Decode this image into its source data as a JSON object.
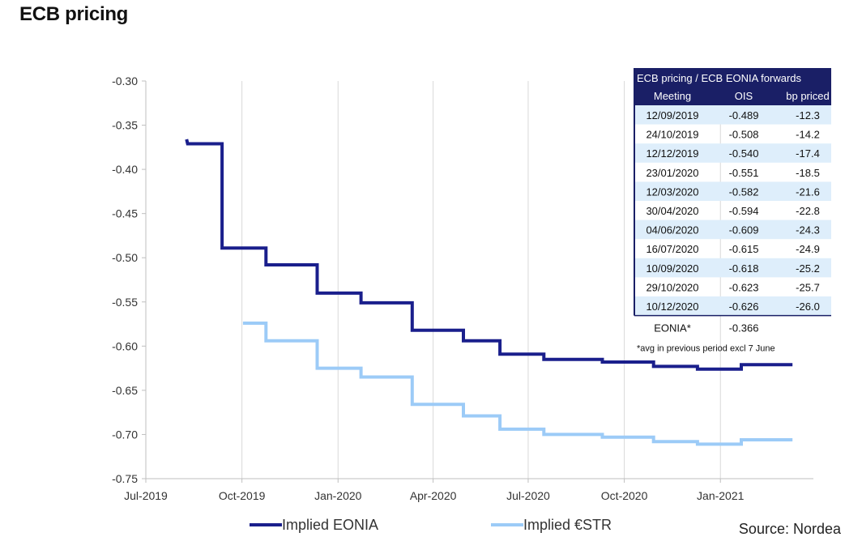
{
  "page": {
    "title": "ECB pricing"
  },
  "chart_data": {
    "type": "line",
    "xlabel": "",
    "ylabel": "",
    "ylim": [
      -0.75,
      -0.3
    ],
    "y_ticks": [
      "-0.30",
      "-0.35",
      "-0.40",
      "-0.45",
      "-0.50",
      "-0.55",
      "-0.60",
      "-0.65",
      "-0.70",
      "-0.75"
    ],
    "x_ticks": [
      {
        "date": "2019-07-01",
        "label": "Jul-2019"
      },
      {
        "date": "2019-10-01",
        "label": "Oct-2019"
      },
      {
        "date": "2020-01-01",
        "label": "Jan-2020"
      },
      {
        "date": "2020-04-01",
        "label": "Apr-2020"
      },
      {
        "date": "2020-07-01",
        "label": "Jul-2020"
      },
      {
        "date": "2020-10-01",
        "label": "Oct-2020"
      },
      {
        "date": "2021-01-01",
        "label": "Jan-2021"
      }
    ],
    "grid": "vertical",
    "legend_position": "bottom",
    "series": [
      {
        "name": "Implied EONIA",
        "color": "#1a1f8c",
        "step": true,
        "points": [
          [
            "2019-08-09",
            -0.366
          ],
          [
            "2019-08-10",
            -0.371
          ],
          [
            "2019-09-12",
            -0.371
          ],
          [
            "2019-09-12",
            -0.489
          ],
          [
            "2019-10-24",
            -0.489
          ],
          [
            "2019-10-24",
            -0.508
          ],
          [
            "2019-12-12",
            -0.508
          ],
          [
            "2019-12-12",
            -0.54
          ],
          [
            "2020-01-23",
            -0.54
          ],
          [
            "2020-01-23",
            -0.551
          ],
          [
            "2020-03-12",
            -0.551
          ],
          [
            "2020-03-12",
            -0.582
          ],
          [
            "2020-04-30",
            -0.582
          ],
          [
            "2020-04-30",
            -0.594
          ],
          [
            "2020-06-04",
            -0.594
          ],
          [
            "2020-06-04",
            -0.609
          ],
          [
            "2020-07-16",
            -0.609
          ],
          [
            "2020-07-16",
            -0.615
          ],
          [
            "2020-09-10",
            -0.615
          ],
          [
            "2020-09-10",
            -0.618
          ],
          [
            "2020-10-29",
            -0.618
          ],
          [
            "2020-10-29",
            -0.623
          ],
          [
            "2020-12-10",
            -0.623
          ],
          [
            "2020-12-10",
            -0.626
          ],
          [
            "2021-01-21",
            -0.626
          ],
          [
            "2021-01-21",
            -0.621
          ],
          [
            "2021-03-11",
            -0.621
          ]
        ]
      },
      {
        "name": "Implied €STR",
        "color": "#9ccbf7",
        "step": true,
        "points": [
          [
            "2019-10-02",
            -0.574
          ],
          [
            "2019-10-24",
            -0.574
          ],
          [
            "2019-10-24",
            -0.594
          ],
          [
            "2019-12-12",
            -0.594
          ],
          [
            "2019-12-12",
            -0.625
          ],
          [
            "2020-01-23",
            -0.625
          ],
          [
            "2020-01-23",
            -0.635
          ],
          [
            "2020-03-12",
            -0.635
          ],
          [
            "2020-03-12",
            -0.666
          ],
          [
            "2020-04-30",
            -0.666
          ],
          [
            "2020-04-30",
            -0.679
          ],
          [
            "2020-06-04",
            -0.679
          ],
          [
            "2020-06-04",
            -0.694
          ],
          [
            "2020-07-16",
            -0.694
          ],
          [
            "2020-07-16",
            -0.7
          ],
          [
            "2020-09-10",
            -0.7
          ],
          [
            "2020-09-10",
            -0.703
          ],
          [
            "2020-10-29",
            -0.703
          ],
          [
            "2020-10-29",
            -0.708
          ],
          [
            "2020-12-10",
            -0.708
          ],
          [
            "2020-12-10",
            -0.711
          ],
          [
            "2021-01-21",
            -0.711
          ],
          [
            "2021-01-21",
            -0.706
          ],
          [
            "2021-03-11",
            -0.706
          ]
        ]
      }
    ],
    "table": {
      "title": "ECB pricing / ECB EONIA forwards",
      "columns": [
        "Meeting",
        "OIS",
        "bp priced"
      ],
      "rows": [
        [
          "12/09/2019",
          "-0.489",
          "-12.3"
        ],
        [
          "24/10/2019",
          "-0.508",
          "-14.2"
        ],
        [
          "12/12/2019",
          "-0.540",
          "-17.4"
        ],
        [
          "23/01/2020",
          "-0.551",
          "-18.5"
        ],
        [
          "12/03/2020",
          "-0.582",
          "-21.6"
        ],
        [
          "30/04/2020",
          "-0.594",
          "-22.8"
        ],
        [
          "04/06/2020",
          "-0.609",
          "-24.3"
        ],
        [
          "16/07/2020",
          "-0.615",
          "-24.9"
        ],
        [
          "10/09/2020",
          "-0.618",
          "-25.2"
        ],
        [
          "29/10/2020",
          "-0.623",
          "-25.7"
        ],
        [
          "10/12/2020",
          "-0.626",
          "-26.0"
        ]
      ],
      "footer_row": [
        "EONIA*",
        "-0.366"
      ],
      "note": "*avg in previous period excl 7 June",
      "header_color": "#1a1f66",
      "stripe_color": "#deeefb"
    },
    "source": "Source: Nordea"
  }
}
